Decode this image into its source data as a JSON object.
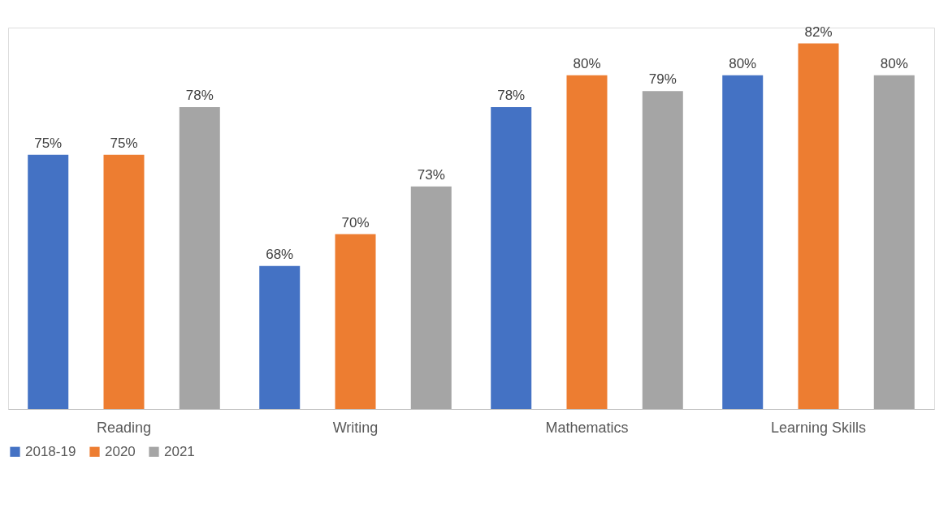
{
  "chart_data": {
    "type": "bar",
    "categories": [
      "Reading",
      "Writing",
      "Mathematics",
      "Learning Skills"
    ],
    "series": [
      {
        "name": "2018-19",
        "color": "#4472c4",
        "values": [
          75,
          68,
          78,
          80
        ],
        "value_labels": [
          "75%",
          "68%",
          "78%",
          "80%"
        ]
      },
      {
        "name": "2020",
        "color": "#ed7d31",
        "values": [
          75,
          70,
          80,
          82
        ],
        "value_labels": [
          "75%",
          "70%",
          "80%",
          "82%"
        ]
      },
      {
        "name": "2021",
        "color": "#a5a5a5",
        "values": [
          78,
          73,
          79,
          80
        ],
        "value_labels": [
          "78%",
          "73%",
          "79%",
          "80%"
        ]
      }
    ],
    "ylim": [
      59,
      83
    ],
    "grid": false,
    "legend": "bottom",
    "tick_labels": "x"
  }
}
